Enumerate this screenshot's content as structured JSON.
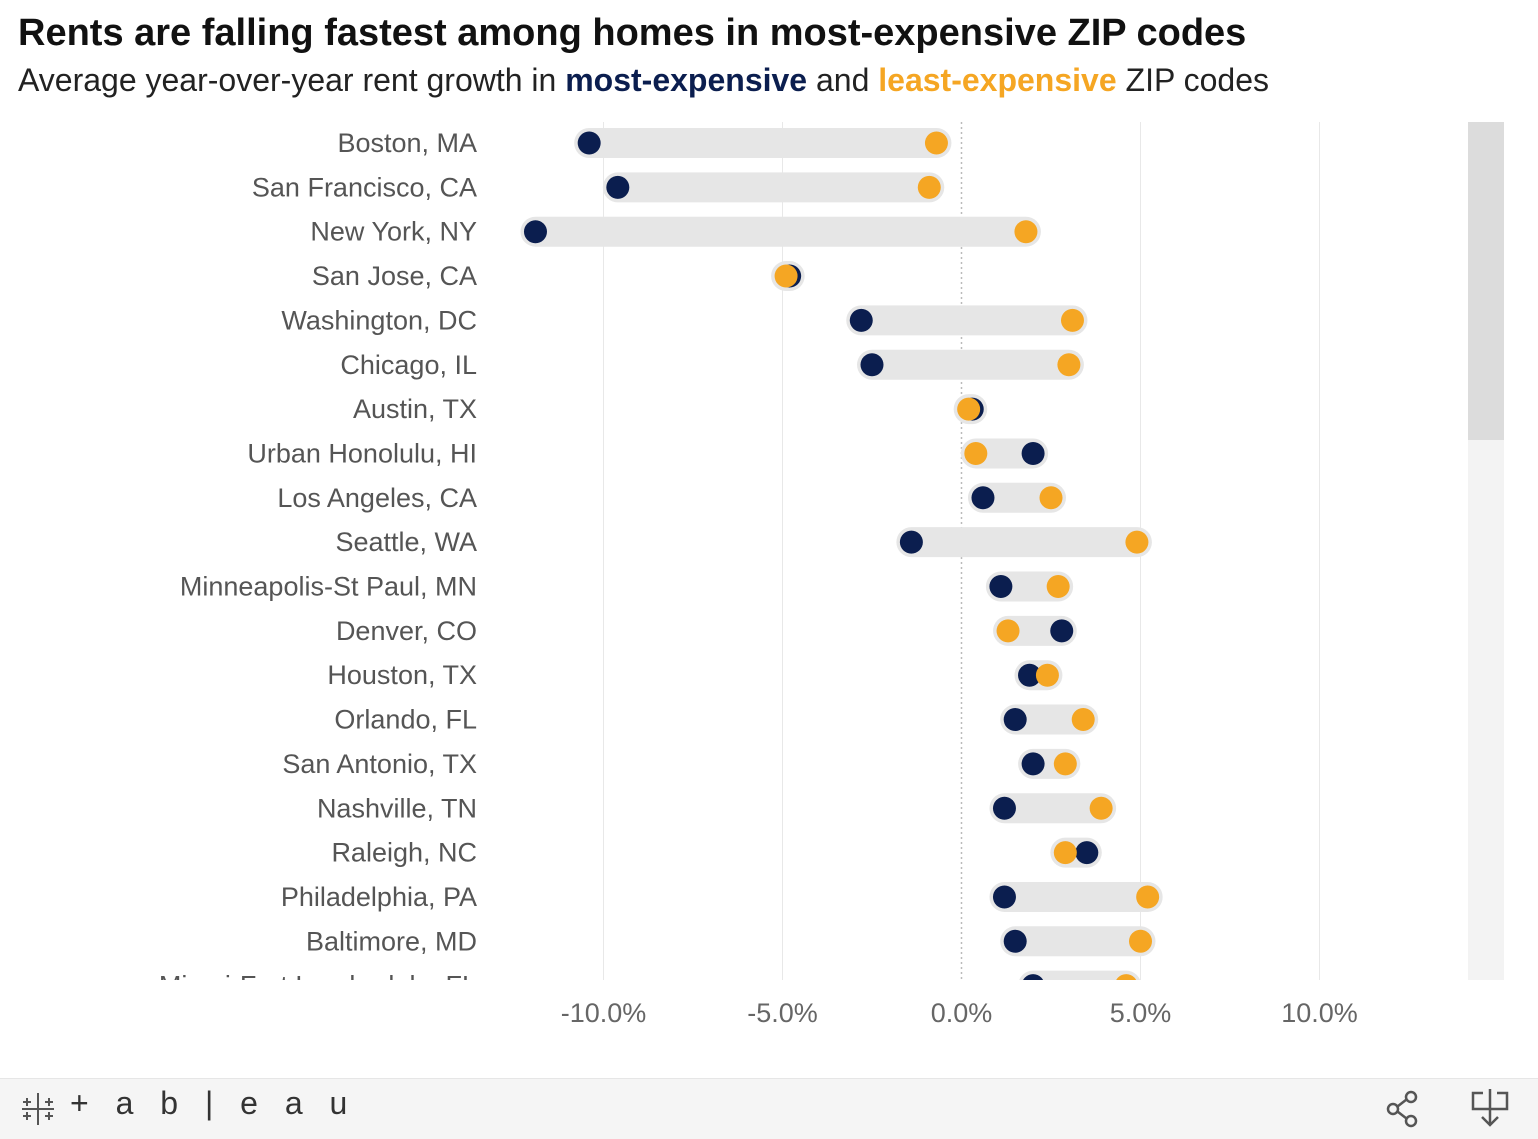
{
  "chart_data": {
    "type": "dumbbell",
    "title": "Rents are falling fastest among homes in most-expensive ZIP codes",
    "subtitle": {
      "prefix": "Average year-over-year rent growth in ",
      "most_label": "most-expensive",
      "middle": " and ",
      "least_label": "least-expensive",
      "suffix": " ZIP codes"
    },
    "series": [
      {
        "name": "most-expensive",
        "color": "#0b1e4f"
      },
      {
        "name": "least-expensive",
        "color": "#f5a623"
      }
    ],
    "xlim": [
      -12.0,
      14.0
    ],
    "x_ticks": [
      {
        "value": -10,
        "label": "-10.0%"
      },
      {
        "value": -5,
        "label": "-5.0%"
      },
      {
        "value": 0,
        "label": "0.0%"
      },
      {
        "value": 5,
        "label": "5.0%"
      },
      {
        "value": 10,
        "label": "10.0%"
      }
    ],
    "grid": true,
    "categories": [
      {
        "name": "Boston, MA",
        "most": -10.4,
        "least": -0.7
      },
      {
        "name": "San Francisco, CA",
        "most": -9.6,
        "least": -0.9
      },
      {
        "name": "New York, NY",
        "most": -11.9,
        "least": 1.8
      },
      {
        "name": "San Jose, CA",
        "most": -4.8,
        "least": -4.9
      },
      {
        "name": "Washington, DC",
        "most": -2.8,
        "least": 3.1
      },
      {
        "name": "Chicago, IL",
        "most": -2.5,
        "least": 3.0
      },
      {
        "name": "Austin, TX",
        "most": 0.3,
        "least": 0.2
      },
      {
        "name": "Urban Honolulu, HI",
        "most": 2.0,
        "least": 0.4
      },
      {
        "name": "Los Angeles, CA",
        "most": 0.6,
        "least": 2.5
      },
      {
        "name": "Seattle, WA",
        "most": -1.4,
        "least": 4.9
      },
      {
        "name": "Minneapolis-St Paul, MN",
        "most": 1.1,
        "least": 2.7
      },
      {
        "name": "Denver, CO",
        "most": 2.8,
        "least": 1.3
      },
      {
        "name": "Houston, TX",
        "most": 1.9,
        "least": 2.4
      },
      {
        "name": "Orlando, FL",
        "most": 1.5,
        "least": 3.4
      },
      {
        "name": "San Antonio, TX",
        "most": 2.0,
        "least": 2.9
      },
      {
        "name": "Nashville, TN",
        "most": 1.2,
        "least": 3.9
      },
      {
        "name": "Raleigh, NC",
        "most": 3.5,
        "least": 2.9
      },
      {
        "name": "Philadelphia, PA",
        "most": 1.2,
        "least": 5.2
      },
      {
        "name": "Baltimore, MD",
        "most": 1.5,
        "least": 5.0
      },
      {
        "name": "Miami-Fort Lauderdale, FL",
        "most": 2.0,
        "least": 4.6
      }
    ]
  },
  "footer": {
    "brand": "+ a b | e a u",
    "share_icon": "share-icon",
    "download_icon": "download-icon"
  }
}
